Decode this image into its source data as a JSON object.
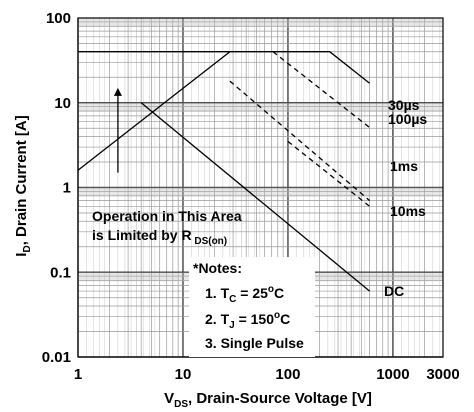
{
  "chart_data": {
    "type": "line",
    "x_scale": "log",
    "y_scale": "log",
    "xlim": [
      1,
      3000
    ],
    "ylim": [
      0.01,
      100
    ],
    "grid": true,
    "x_ticks": [
      {
        "value": 1,
        "label": "1"
      },
      {
        "value": 10,
        "label": "10"
      },
      {
        "value": 100,
        "label": "100"
      },
      {
        "value": 1000,
        "label": "1000"
      },
      {
        "value": 3000,
        "label": "3000"
      }
    ],
    "y_ticks": [
      {
        "value": 100,
        "label": "100"
      },
      {
        "value": 10,
        "label": "10"
      },
      {
        "value": 1,
        "label": "1"
      },
      {
        "value": 0.1,
        "label": "0.1"
      },
      {
        "value": 0.01,
        "label": "0.01"
      }
    ],
    "xlabel": {
      "main": "V",
      "sub": "DS",
      "rest": ", Drain-Source Voltage [V]"
    },
    "ylabel": {
      "main": "I",
      "sub": "D",
      "rest": ", Drain Current [A]"
    },
    "series": [
      {
        "name": "30µs",
        "style": "solid",
        "x": [
          28,
          250,
          600
        ],
        "y": [
          40,
          40,
          17
        ]
      },
      {
        "name": "100µs",
        "style": "dashed",
        "x": [
          72,
          600
        ],
        "y": [
          40,
          5.1
        ]
      },
      {
        "name": "1ms",
        "style": "dashed",
        "x": [
          28,
          600
        ],
        "y": [
          18,
          0.7
        ]
      },
      {
        "name": "10ms",
        "style": "dashed",
        "x": [
          100,
          600
        ],
        "y": [
          3.5,
          0.6
        ]
      },
      {
        "name": "DC",
        "style": "solid",
        "x": [
          4,
          600
        ],
        "y": [
          10,
          0.06
        ]
      }
    ],
    "limits": [
      {
        "name": "rds_on_limit",
        "style": "solid",
        "x": [
          1,
          28
        ],
        "y": [
          1.6,
          40
        ]
      },
      {
        "name": "current_limit",
        "style": "solid",
        "x": [
          1,
          28
        ],
        "y": [
          40,
          40
        ]
      }
    ],
    "arrow": {
      "x": 2.4,
      "y_from": 1.5,
      "y_to": 15
    },
    "annotations": {
      "area_line1": "Operation in This Area",
      "area_line2_pre": "is Limited by R",
      "area_line2_sub": " DS(on)",
      "notes_title": "*Notes:",
      "note1_pre": "1. T",
      "note1_sub": "C",
      "note1_mid": " = 25",
      "note1_sup": "o",
      "note1_post": "C",
      "note2_pre": "2. T",
      "note2_sub": "J",
      "note2_mid": " = 150",
      "note2_sup": "o",
      "note2_post": "C",
      "note3": "3. Single Pulse"
    }
  }
}
